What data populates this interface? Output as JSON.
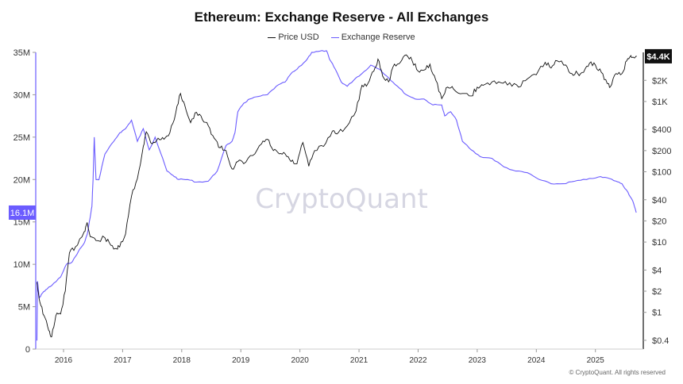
{
  "chart_data": {
    "type": "line",
    "title": "Ethereum: Exchange Reserve - All Exchanges",
    "legend": [
      "Price USD",
      "Exchange Reserve"
    ],
    "legend_placement": "top-center",
    "x_ticks": [
      "2016",
      "2017",
      "2018",
      "2019",
      "2020",
      "2021",
      "2022",
      "2023",
      "2024",
      "2025"
    ],
    "y_left": {
      "ticks": [
        "0",
        "5M",
        "10M",
        "15M",
        "20M",
        "25M",
        "30M",
        "35M"
      ],
      "min": 0,
      "max": 35000000
    },
    "y_right": {
      "scale": "log",
      "ticks": [
        "$0.4",
        "$1",
        "$2",
        "$4",
        "$10",
        "$20",
        "$40",
        "$100",
        "$200",
        "$400",
        "$1K",
        "$2K"
      ],
      "min": 0.3,
      "max": 5000
    },
    "current_labels": {
      "price": "$4.4K",
      "reserve": "16.1M"
    },
    "colors": {
      "price": "#111111",
      "reserve": "#6b5cff",
      "reserve_label_bg": "#6b5cff"
    },
    "grid": false,
    "series": [
      {
        "name": "Price USD",
        "values": [
          [
            2015.6,
            2.7
          ],
          [
            2015.65,
            1.4
          ],
          [
            2015.72,
            0.9
          ],
          [
            2015.8,
            0.55
          ],
          [
            2015.85,
            0.45
          ],
          [
            2015.92,
            0.9
          ],
          [
            2016.0,
            0.95
          ],
          [
            2016.08,
            2.0
          ],
          [
            2016.15,
            7.0
          ],
          [
            2016.25,
            8.5
          ],
          [
            2016.4,
            14.0
          ],
          [
            2016.45,
            19.0
          ],
          [
            2016.5,
            12.0
          ],
          [
            2016.6,
            10.5
          ],
          [
            2016.75,
            11.5
          ],
          [
            2016.85,
            9.0
          ],
          [
            2016.95,
            8.0
          ],
          [
            2017.0,
            8.5
          ],
          [
            2017.1,
            13.0
          ],
          [
            2017.2,
            45.0
          ],
          [
            2017.3,
            80.0
          ],
          [
            2017.4,
            230.0
          ],
          [
            2017.45,
            370.0
          ],
          [
            2017.55,
            250.0
          ],
          [
            2017.65,
            300.0
          ],
          [
            2017.75,
            290.0
          ],
          [
            2017.85,
            360.0
          ],
          [
            2017.95,
            700.0
          ],
          [
            2018.03,
            1300.0
          ],
          [
            2018.1,
            900.0
          ],
          [
            2018.2,
            500.0
          ],
          [
            2018.3,
            700.0
          ],
          [
            2018.4,
            550.0
          ],
          [
            2018.5,
            450.0
          ],
          [
            2018.6,
            300.0
          ],
          [
            2018.7,
            220.0
          ],
          [
            2018.8,
            200.0
          ],
          [
            2018.9,
            110.0
          ],
          [
            2019.0,
            140.0
          ],
          [
            2019.1,
            130.0
          ],
          [
            2019.25,
            170.0
          ],
          [
            2019.4,
            250.0
          ],
          [
            2019.5,
            290.0
          ],
          [
            2019.6,
            200.0
          ],
          [
            2019.7,
            180.0
          ],
          [
            2019.8,
            180.0
          ],
          [
            2019.9,
            140.0
          ],
          [
            2020.0,
            130.0
          ],
          [
            2020.1,
            260.0
          ],
          [
            2020.2,
            120.0
          ],
          [
            2020.3,
            200.0
          ],
          [
            2020.45,
            230.0
          ],
          [
            2020.6,
            380.0
          ],
          [
            2020.7,
            360.0
          ],
          [
            2020.85,
            450.0
          ],
          [
            2021.0,
            730.0
          ],
          [
            2021.1,
            1700.0
          ],
          [
            2021.2,
            1800.0
          ],
          [
            2021.3,
            2700.0
          ],
          [
            2021.37,
            4000.0
          ],
          [
            2021.45,
            2300.0
          ],
          [
            2021.55,
            1900.0
          ],
          [
            2021.65,
            3400.0
          ],
          [
            2021.75,
            3600.0
          ],
          [
            2021.85,
            4600.0
          ],
          [
            2021.95,
            3800.0
          ],
          [
            2022.05,
            2700.0
          ],
          [
            2022.15,
            2800.0
          ],
          [
            2022.25,
            3400.0
          ],
          [
            2022.35,
            2000.0
          ],
          [
            2022.45,
            1100.0
          ],
          [
            2022.55,
            1600.0
          ],
          [
            2022.65,
            1500.0
          ],
          [
            2022.8,
            1300.0
          ],
          [
            2022.95,
            1200.0
          ],
          [
            2023.05,
            1600.0
          ],
          [
            2023.15,
            1700.0
          ],
          [
            2023.3,
            1900.0
          ],
          [
            2023.45,
            1850.0
          ],
          [
            2023.6,
            1850.0
          ],
          [
            2023.75,
            1600.0
          ],
          [
            2023.9,
            2100.0
          ],
          [
            2024.05,
            2400.0
          ],
          [
            2024.2,
            3600.0
          ],
          [
            2024.3,
            3000.0
          ],
          [
            2024.4,
            3800.0
          ],
          [
            2024.55,
            3300.0
          ],
          [
            2024.65,
            2500.0
          ],
          [
            2024.75,
            2500.0
          ],
          [
            2024.85,
            2600.0
          ],
          [
            2024.95,
            3500.0
          ],
          [
            2025.05,
            3300.0
          ],
          [
            2025.15,
            2600.0
          ],
          [
            2025.25,
            1800.0
          ],
          [
            2025.3,
            1600.0
          ],
          [
            2025.4,
            2500.0
          ],
          [
            2025.5,
            2500.0
          ],
          [
            2025.58,
            3800.0
          ],
          [
            2025.65,
            4500.0
          ],
          [
            2025.7,
            4200.0
          ],
          [
            2025.75,
            4400.0
          ]
        ]
      },
      {
        "name": "Exchange Reserve",
        "values": [
          [
            2015.6,
            1000000
          ],
          [
            2015.61,
            8000000
          ],
          [
            2015.64,
            6000000
          ],
          [
            2015.68,
            6500000
          ],
          [
            2015.75,
            7000000
          ],
          [
            2015.85,
            7500000
          ],
          [
            2016.0,
            8500000
          ],
          [
            2016.1,
            10000000
          ],
          [
            2016.2,
            10300000
          ],
          [
            2016.3,
            11500000
          ],
          [
            2016.4,
            12500000
          ],
          [
            2016.45,
            13500000
          ],
          [
            2016.5,
            15500000
          ],
          [
            2016.53,
            16800000
          ],
          [
            2016.55,
            20000000
          ],
          [
            2016.57,
            25000000
          ],
          [
            2016.6,
            20000000
          ],
          [
            2016.65,
            20000000
          ],
          [
            2016.75,
            23000000
          ],
          [
            2016.9,
            24500000
          ],
          [
            2017.0,
            25500000
          ],
          [
            2017.1,
            26000000
          ],
          [
            2017.2,
            27000000
          ],
          [
            2017.3,
            24500000
          ],
          [
            2017.4,
            26000000
          ],
          [
            2017.5,
            23500000
          ],
          [
            2017.6,
            25000000
          ],
          [
            2017.7,
            23000000
          ],
          [
            2017.8,
            21000000
          ],
          [
            2017.9,
            20500000
          ],
          [
            2018.0,
            20000000
          ],
          [
            2018.15,
            20000000
          ],
          [
            2018.3,
            19700000
          ],
          [
            2018.5,
            19800000
          ],
          [
            2018.65,
            21000000
          ],
          [
            2018.8,
            24000000
          ],
          [
            2018.9,
            24500000
          ],
          [
            2018.95,
            25500000
          ],
          [
            2019.0,
            28000000
          ],
          [
            2019.1,
            29000000
          ],
          [
            2019.2,
            29500000
          ],
          [
            2019.35,
            29800000
          ],
          [
            2019.5,
            30000000
          ],
          [
            2019.65,
            31000000
          ],
          [
            2019.8,
            31500000
          ],
          [
            2019.9,
            32500000
          ],
          [
            2020.0,
            33000000
          ],
          [
            2020.15,
            34000000
          ],
          [
            2020.25,
            35000000
          ],
          [
            2020.35,
            35100000
          ],
          [
            2020.5,
            35200000
          ],
          [
            2020.55,
            34200000
          ],
          [
            2020.65,
            33000000
          ],
          [
            2020.75,
            31500000
          ],
          [
            2020.85,
            31000000
          ],
          [
            2021.0,
            32000000
          ],
          [
            2021.1,
            32500000
          ],
          [
            2021.25,
            33500000
          ],
          [
            2021.4,
            33000000
          ],
          [
            2021.55,
            32000000
          ],
          [
            2021.7,
            31000000
          ],
          [
            2021.85,
            30000000
          ],
          [
            2022.0,
            29500000
          ],
          [
            2022.15,
            29500000
          ],
          [
            2022.3,
            28800000
          ],
          [
            2022.45,
            28800000
          ],
          [
            2022.5,
            27500000
          ],
          [
            2022.6,
            28000000
          ],
          [
            2022.7,
            27000000
          ],
          [
            2022.8,
            24500000
          ],
          [
            2022.95,
            23500000
          ],
          [
            2023.1,
            22700000
          ],
          [
            2023.3,
            22500000
          ],
          [
            2023.5,
            21500000
          ],
          [
            2023.7,
            21000000
          ],
          [
            2023.9,
            20800000
          ],
          [
            2024.1,
            20000000
          ],
          [
            2024.3,
            19500000
          ],
          [
            2024.5,
            19500000
          ],
          [
            2024.7,
            19800000
          ],
          [
            2024.9,
            20000000
          ],
          [
            2025.1,
            20300000
          ],
          [
            2025.25,
            20200000
          ],
          [
            2025.4,
            19800000
          ],
          [
            2025.5,
            19500000
          ],
          [
            2025.6,
            18500000
          ],
          [
            2025.68,
            17500000
          ],
          [
            2025.74,
            16100000
          ]
        ]
      }
    ]
  },
  "watermark": "CryptoQuant",
  "footer": "© CryptoQuant. All rights reserved"
}
